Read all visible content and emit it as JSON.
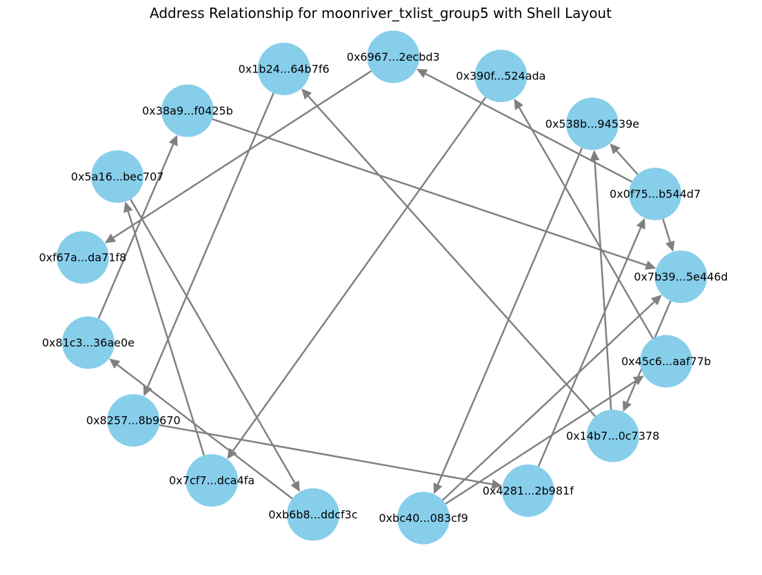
{
  "title": "Address Relationship for moonriver_txlist_group5 with Shell Layout",
  "colors": {
    "node": "#87CEEB",
    "edge": "#808080",
    "text": "#000000"
  },
  "nodes": [
    {
      "id": "0x6967",
      "label": "0x6967...2ecbd3"
    },
    {
      "id": "0x390f",
      "label": "0x390f...524ada"
    },
    {
      "id": "0x538b",
      "label": "0x538b...94539e"
    },
    {
      "id": "0x0f75",
      "label": "0x0f75...b544d7"
    },
    {
      "id": "0x7b39",
      "label": "0x7b39...5e446d"
    },
    {
      "id": "0x45c6",
      "label": "0x45c6...aaf77b"
    },
    {
      "id": "0x14b7",
      "label": "0x14b7...0c7378"
    },
    {
      "id": "0x4281",
      "label": "0x4281...2b981f"
    },
    {
      "id": "0xbc40",
      "label": "0xbc40...083cf9"
    },
    {
      "id": "0xb6b8",
      "label": "0xb6b8...ddcf3c"
    },
    {
      "id": "0x7cf7",
      "label": "0x7cf7...dca4fa"
    },
    {
      "id": "0x8257",
      "label": "0x8257...8b9670"
    },
    {
      "id": "0x81c3",
      "label": "0x81c3...36ae0e"
    },
    {
      "id": "0xf67a",
      "label": "0xf67a...da71f8"
    },
    {
      "id": "0x5a16",
      "label": "0x5a16...bec707"
    },
    {
      "id": "0x38a9",
      "label": "0x38a9...f0425b"
    },
    {
      "id": "0x1b24",
      "label": "0x1b24...64b7f6"
    }
  ],
  "edges": [
    {
      "source": "0x6967",
      "target": "0xf67a"
    },
    {
      "source": "0x390f",
      "target": "0x7cf7"
    },
    {
      "source": "0x538b",
      "target": "0xbc40"
    },
    {
      "source": "0x0f75",
      "target": "0x6967"
    },
    {
      "source": "0x0f75",
      "target": "0x538b"
    },
    {
      "source": "0x0f75",
      "target": "0x7b39"
    },
    {
      "source": "0x7b39",
      "target": "0x14b7"
    },
    {
      "source": "0x45c6",
      "target": "0x390f"
    },
    {
      "source": "0x14b7",
      "target": "0x538b"
    },
    {
      "source": "0x14b7",
      "target": "0x1b24"
    },
    {
      "source": "0x4281",
      "target": "0x0f75"
    },
    {
      "source": "0xbc40",
      "target": "0x7b39"
    },
    {
      "source": "0xbc40",
      "target": "0x45c6"
    },
    {
      "source": "0xb6b8",
      "target": "0x81c3"
    },
    {
      "source": "0x7cf7",
      "target": "0x5a16"
    },
    {
      "source": "0x8257",
      "target": "0x4281"
    },
    {
      "source": "0x81c3",
      "target": "0x38a9"
    },
    {
      "source": "0x5a16",
      "target": "0xb6b8"
    },
    {
      "source": "0x38a9",
      "target": "0x7b39"
    },
    {
      "source": "0x1b24",
      "target": "0x8257"
    }
  ]
}
